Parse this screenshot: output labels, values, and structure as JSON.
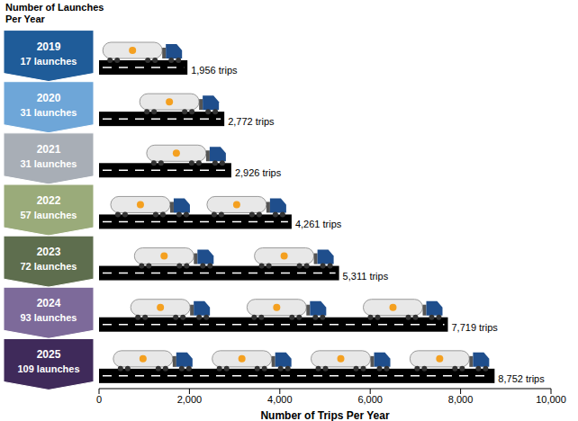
{
  "chart_data": {
    "type": "bar",
    "orientation": "horizontal",
    "title": "Number of Launches Per Year",
    "xlabel": "Number of Trips Per Year",
    "categories": [
      "2019",
      "2020",
      "2021",
      "2022",
      "2023",
      "2024",
      "2025"
    ],
    "category_labels": [
      "17 launches",
      "31 launches",
      "31 launches",
      "57 launches",
      "72 launches",
      "93 launches",
      "109 launches"
    ],
    "values": [
      1956,
      2772,
      2926,
      4261,
      5311,
      7719,
      8752
    ],
    "value_labels": [
      "1,956 trips",
      "2,772 trips",
      "2,926 trips",
      "4,261 trips",
      "5,311 trips",
      "7,719 trips",
      "8,752 trips"
    ],
    "data_labels": true,
    "color": "#000000",
    "xlim": [
      0,
      10000
    ],
    "xticks": [
      0,
      {
        "value": 2000,
        "label": "2,000"
      },
      {
        "value": 4000,
        "label": "4,000"
      },
      {
        "value": 6000,
        "label": "6,000"
      },
      {
        "value": 8000,
        "label": "8,000"
      },
      {
        "value": 10000,
        "label": "10,000"
      }
    ],
    "grid": false
  }
}
